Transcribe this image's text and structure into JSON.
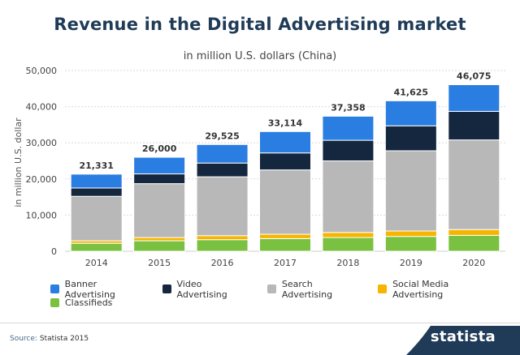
{
  "header": {
    "title": "Revenue in the Digital Advertising market",
    "subtitle": "in million U.S. dollars (China)"
  },
  "chart_data": {
    "type": "bar",
    "stacked": true,
    "title": "Revenue in the Digital Advertising market",
    "subtitle": "in million U.S. dollars (China)",
    "xlabel": "",
    "ylabel": "in million U.S. dollar",
    "ylim": [
      0,
      50000
    ],
    "yticks": [
      0,
      10000,
      20000,
      30000,
      40000,
      50000
    ],
    "ytick_labels": [
      "0",
      "10,000",
      "20,000",
      "30,000",
      "40,000",
      "50,000"
    ],
    "grid": true,
    "legend_position": "bottom",
    "categories": [
      "2014",
      "2015",
      "2016",
      "2017",
      "2018",
      "2019",
      "2020"
    ],
    "series": [
      {
        "name": "Classifieds",
        "color": "#7ac142",
        "values": [
          2200,
          2900,
          3200,
          3500,
          3800,
          4100,
          4400
        ]
      },
      {
        "name": "Social Media Advertising",
        "color": "#f7b500",
        "values": [
          700,
          900,
          1100,
          1200,
          1400,
          1500,
          1600
        ]
      },
      {
        "name": "Search Advertising",
        "color": "#b8b8b8",
        "values": [
          12300,
          14900,
          16300,
          17800,
          19800,
          22200,
          24800
        ]
      },
      {
        "name": "Video Advertising",
        "color": "#14273f",
        "values": [
          2300,
          2700,
          3800,
          4700,
          5700,
          6900,
          7900
        ]
      },
      {
        "name": "Banner Advertising",
        "color": "#2a7de1",
        "values": [
          3831,
          4600,
          5125,
          5914,
          6658,
          6925,
          7375
        ]
      }
    ],
    "totals": [
      21331,
      26000,
      29525,
      33114,
      37358,
      41625,
      46075
    ],
    "total_labels": [
      "21,331",
      "26,000",
      "29,525",
      "33,114",
      "37,358",
      "41,625",
      "46,075"
    ]
  },
  "legend": {
    "rows": [
      [
        {
          "label": "Banner Advertising",
          "color": "#2a7de1"
        },
        {
          "label": "Video Advertising",
          "color": "#14273f"
        },
        {
          "label": "Search Advertising",
          "color": "#b8b8b8"
        },
        {
          "label": "Social Media Advertising",
          "color": "#f7b500"
        }
      ],
      [
        {
          "label": "Classifieds",
          "color": "#7ac142"
        }
      ]
    ]
  },
  "footer": {
    "source_label": "Source:",
    "source_text": "Statista 2015",
    "brand": "statista"
  },
  "colors": {
    "title": "#1f3b57",
    "brand_band": "#1f3b57",
    "grid": "#d9d9d9"
  }
}
